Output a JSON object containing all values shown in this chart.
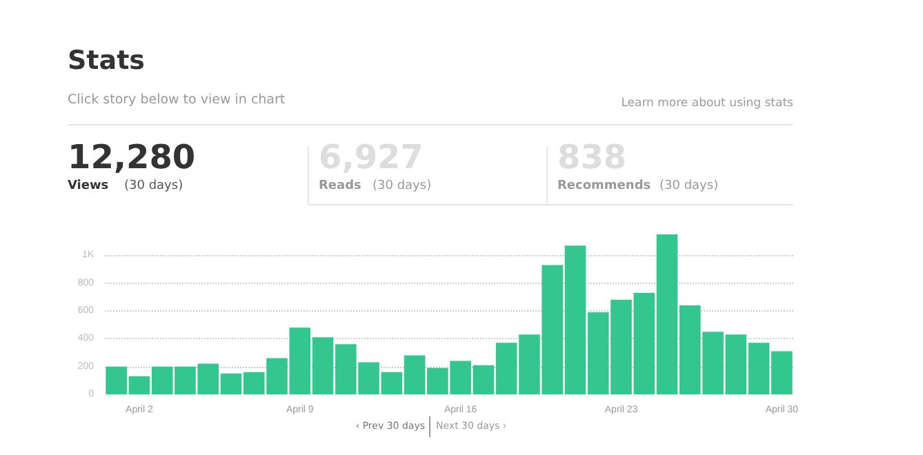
{
  "chart_data": {
    "type": "bar",
    "title": "Stats",
    "subtitle": "Click story below to view in chart",
    "annotations": [
      "Learn more about using stats",
      "12,280",
      "Views",
      "(30 days)",
      "6,927",
      "Reads",
      "(30 days)",
      "838",
      "Recommends",
      "(30 days)",
      "‹ Prev 30 days",
      "Next 30 days ›"
    ],
    "categories": [
      null,
      "April 2",
      null,
      null,
      null,
      null,
      null,
      null,
      "April 9",
      null,
      null,
      null,
      null,
      null,
      null,
      "April 16",
      null,
      null,
      null,
      null,
      null,
      null,
      "April 23",
      null,
      null,
      null,
      null,
      null,
      null,
      "April 30"
    ],
    "values": [
      200,
      130,
      200,
      200,
      220,
      150,
      160,
      260,
      480,
      410,
      360,
      230,
      160,
      280,
      190,
      240,
      210,
      370,
      430,
      930,
      1070,
      590,
      680,
      730,
      1150,
      640,
      450,
      430,
      370,
      310
    ],
    "color": "#33c68e",
    "ylim": [
      0,
      1150
    ],
    "yticks": [
      0,
      200,
      400,
      600,
      800,
      {
        "value": 1000,
        "label": "1K"
      }
    ],
    "grid": "y",
    "line_style": "dotted"
  }
}
